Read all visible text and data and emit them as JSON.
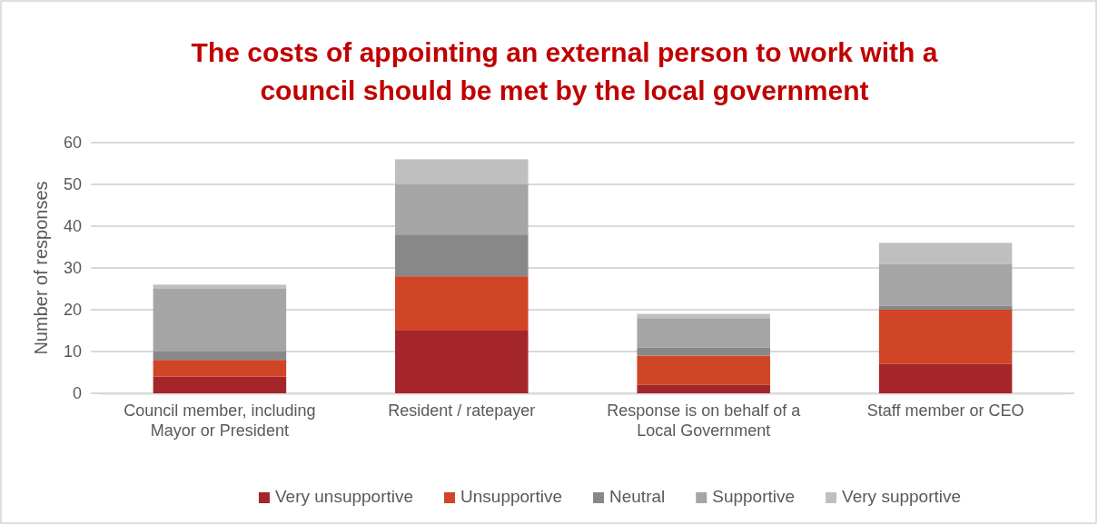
{
  "chart_data": {
    "type": "bar",
    "title": "The costs of appointing an external person to work with a council should be met by the local government",
    "ylabel": "Number of responses",
    "categories": [
      "Council member, including Mayor or President",
      "Resident / ratepayer",
      "Response is on behalf of a Local Government",
      "Staff member or CEO"
    ],
    "stacked": true,
    "series": [
      {
        "name": "Very unsupportive",
        "color": "#a5262a",
        "values": [
          4,
          15,
          2,
          7
        ]
      },
      {
        "name": "Unsupportive",
        "color": "#cf4526",
        "values": [
          4,
          13,
          7,
          13
        ]
      },
      {
        "name": "Neutral",
        "color": "#888888",
        "values": [
          2,
          10,
          2,
          1
        ]
      },
      {
        "name": "Supportive",
        "color": "#a5a5a5",
        "values": [
          15,
          12,
          7,
          10
        ]
      },
      {
        "name": "Very supportive",
        "color": "#bfbfbf",
        "values": [
          1,
          6,
          1,
          5
        ]
      }
    ],
    "ylim": [
      0,
      60
    ],
    "yticks": [
      0,
      10,
      20,
      30,
      40,
      50,
      60
    ],
    "grid": "y",
    "legend": "bottom"
  }
}
